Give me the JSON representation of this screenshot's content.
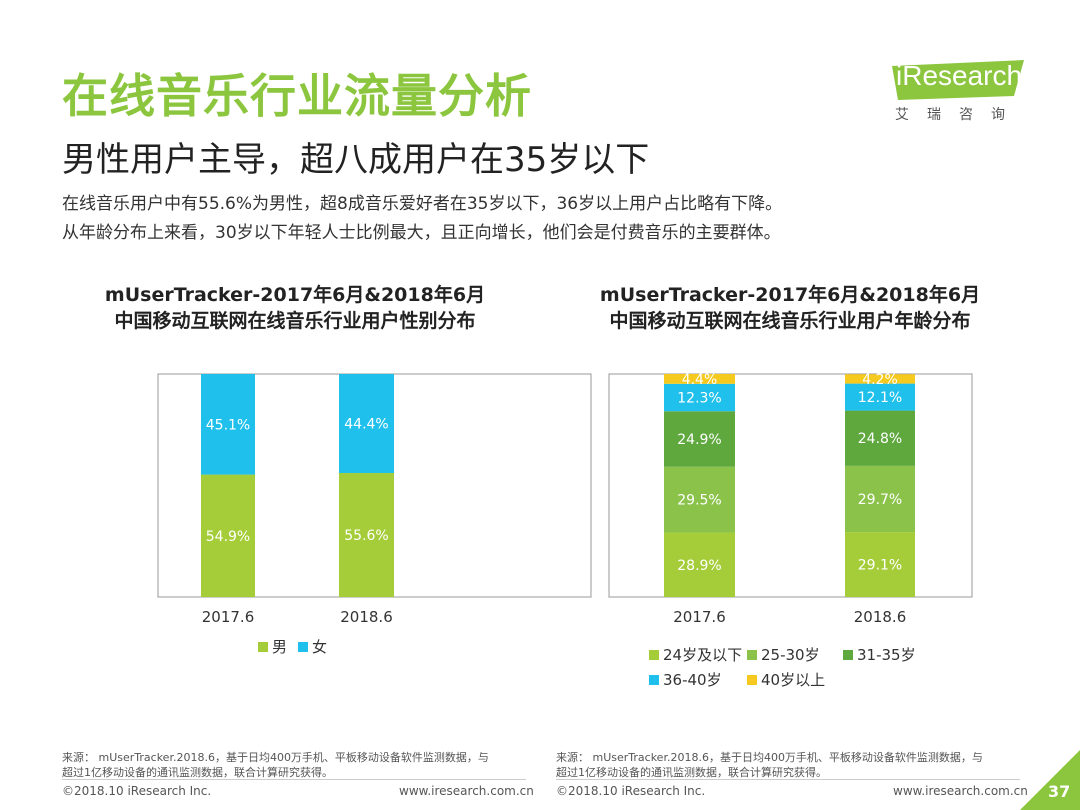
{
  "header": {
    "title": "在线音乐行业流量分析",
    "subtitle": "男性用户主导，超八成用户在35岁以下",
    "desc_line1": "在线音乐用户中有55.6%为男性，超8成音乐爱好者在35岁以下，36岁以上用户占比略有下降。",
    "desc_line2": "从年龄分布上来看，30岁以下年轻人士比例最大，且正向增长，他们会是付费音乐的主要群体。"
  },
  "logo": {
    "text": "iResearch",
    "cn": "艾瑞咨询"
  },
  "colors": {
    "brand_green": "#8cc63f",
    "cyan": "#1fc0ec",
    "dark_green": "#5ea83e",
    "yellow": "#f6c91e"
  },
  "chart_data": [
    {
      "type": "bar",
      "stacked": true,
      "title": "mUserTracker-2017年6月&2018年6月",
      "subtitle": "中国移动互联网在线音乐行业用户性别分布",
      "categories": [
        "2017.6",
        "2018.6"
      ],
      "series": [
        {
          "name": "男",
          "values": [
            54.9,
            55.6
          ],
          "labels": [
            "54.9%",
            "55.6%"
          ],
          "color": "#a5cd39"
        },
        {
          "name": "女",
          "values": [
            45.1,
            44.4
          ],
          "labels": [
            "45.1%",
            "44.4%"
          ],
          "color": "#1fc0ec"
        }
      ],
      "ylim": [
        0,
        100
      ],
      "legend": "bottom"
    },
    {
      "type": "bar",
      "stacked": true,
      "title": "mUserTracker-2017年6月&2018年6月",
      "subtitle": "中国移动互联网在线音乐行业用户年龄分布",
      "categories": [
        "2017.6",
        "2018.6"
      ],
      "series": [
        {
          "name": "24岁及以下",
          "values": [
            28.9,
            29.1
          ],
          "labels": [
            "28.9%",
            "29.1%"
          ],
          "color": "#a5cd39"
        },
        {
          "name": "25-30岁",
          "values": [
            29.5,
            29.7
          ],
          "labels": [
            "29.5%",
            "29.7%"
          ],
          "color": "#8bc34a"
        },
        {
          "name": "31-35岁",
          "values": [
            24.9,
            24.8
          ],
          "labels": [
            "24.9%",
            "24.8%"
          ],
          "color": "#5ea83e"
        },
        {
          "name": "36-40岁",
          "values": [
            12.3,
            12.1
          ],
          "labels": [
            "12.3%",
            "12.1%"
          ],
          "color": "#1fc0ec"
        },
        {
          "name": "40岁以上",
          "values": [
            4.4,
            4.2
          ],
          "labels": [
            "4.4%",
            "4.2%"
          ],
          "color": "#f6c91e"
        }
      ],
      "ylim": [
        0,
        100
      ],
      "legend": "bottom"
    }
  ],
  "footer": {
    "source_line1": "来源： mUserTracker.2018.6，基于日均400万手机、平板移动设备软件监测数据，与",
    "source_line2": "超过1亿移动设备的通讯监测数据，联合计算研究获得。",
    "copyright": "©2018.10 iResearch Inc.",
    "website": "www.iresearch.com.cn",
    "page": "37"
  }
}
